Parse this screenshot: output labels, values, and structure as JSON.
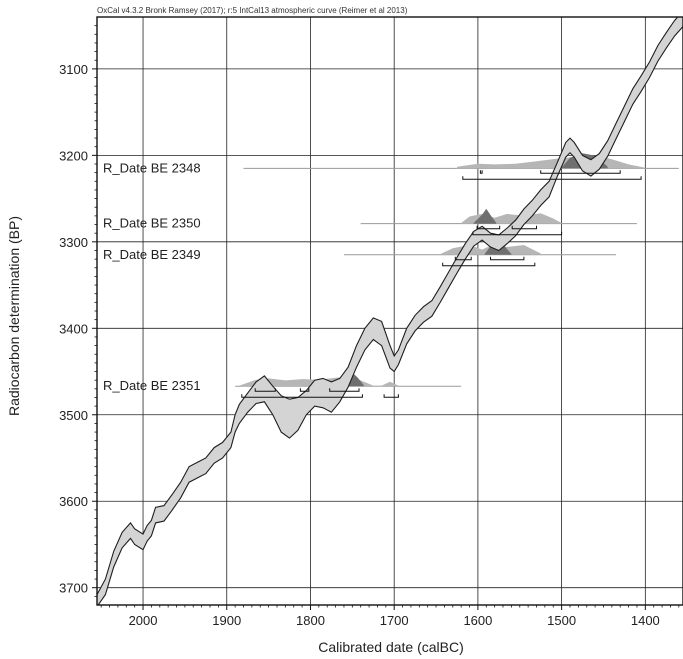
{
  "chart_data": {
    "type": "line",
    "title": "OxCal v4.3.2 Bronk Ramsey (2017); r:5 IntCal13 atmospheric curve (Reimer et al 2013)",
    "xlabel": "Calibrated date (calBC)",
    "ylabel": "Radiocarbon determination (BP)",
    "xlim": [
      2055,
      1355
    ],
    "ylim": [
      3040,
      3720
    ],
    "x_ticks": [
      2000,
      1900,
      1800,
      1700,
      1600,
      1500,
      1400
    ],
    "y_ticks": [
      3100,
      3200,
      3300,
      3400,
      3500,
      3600,
      3700
    ],
    "grid": true,
    "colors": {
      "curve_fill": "#d4d4d4",
      "curve_stroke": "#1e1e1e",
      "posterior": "#6f6f6f",
      "prior": "#b6b6b6",
      "grid": "#222222"
    },
    "series": [
      {
        "name": "IntCal13",
        "upper": [
          [
            2055,
            3708
          ],
          [
            2045,
            3690
          ],
          [
            2035,
            3658
          ],
          [
            2025,
            3636
          ],
          [
            2015,
            3625
          ],
          [
            2010,
            3632
          ],
          [
            2000,
            3638
          ],
          [
            1995,
            3628
          ],
          [
            1990,
            3622
          ],
          [
            1985,
            3607
          ],
          [
            1975,
            3605
          ],
          [
            1965,
            3592
          ],
          [
            1955,
            3578
          ],
          [
            1945,
            3560
          ],
          [
            1935,
            3555
          ],
          [
            1925,
            3550
          ],
          [
            1915,
            3538
          ],
          [
            1905,
            3532
          ],
          [
            1895,
            3520
          ],
          [
            1890,
            3500
          ],
          [
            1885,
            3488
          ],
          [
            1875,
            3475
          ],
          [
            1865,
            3462
          ],
          [
            1855,
            3455
          ],
          [
            1845,
            3467
          ],
          [
            1835,
            3478
          ],
          [
            1825,
            3482
          ],
          [
            1815,
            3480
          ],
          [
            1805,
            3472
          ],
          [
            1795,
            3460
          ],
          [
            1785,
            3458
          ],
          [
            1775,
            3462
          ],
          [
            1765,
            3458
          ],
          [
            1755,
            3445
          ],
          [
            1745,
            3420
          ],
          [
            1735,
            3400
          ],
          [
            1725,
            3388
          ],
          [
            1715,
            3392
          ],
          [
            1705,
            3420
          ],
          [
            1700,
            3432
          ],
          [
            1695,
            3425
          ],
          [
            1685,
            3400
          ],
          [
            1675,
            3385
          ],
          [
            1665,
            3375
          ],
          [
            1655,
            3368
          ],
          [
            1645,
            3352
          ],
          [
            1635,
            3335
          ],
          [
            1625,
            3318
          ],
          [
            1615,
            3302
          ],
          [
            1605,
            3288
          ],
          [
            1595,
            3282
          ],
          [
            1585,
            3290
          ],
          [
            1575,
            3292
          ],
          [
            1565,
            3284
          ],
          [
            1555,
            3275
          ],
          [
            1545,
            3262
          ],
          [
            1535,
            3252
          ],
          [
            1525,
            3240
          ],
          [
            1515,
            3230
          ],
          [
            1505,
            3208
          ],
          [
            1495,
            3185
          ],
          [
            1490,
            3180
          ],
          [
            1485,
            3185
          ],
          [
            1475,
            3200
          ],
          [
            1465,
            3205
          ],
          [
            1455,
            3198
          ],
          [
            1445,
            3183
          ],
          [
            1435,
            3163
          ],
          [
            1425,
            3143
          ],
          [
            1415,
            3123
          ],
          [
            1405,
            3108
          ],
          [
            1395,
            3092
          ],
          [
            1385,
            3073
          ],
          [
            1375,
            3058
          ],
          [
            1365,
            3044
          ],
          [
            1355,
            3033
          ]
        ],
        "lower": [
          [
            2055,
            3722
          ],
          [
            2045,
            3708
          ],
          [
            2035,
            3676
          ],
          [
            2025,
            3654
          ],
          [
            2015,
            3643
          ],
          [
            2010,
            3650
          ],
          [
            2000,
            3656
          ],
          [
            1995,
            3646
          ],
          [
            1990,
            3640
          ],
          [
            1985,
            3625
          ],
          [
            1975,
            3623
          ],
          [
            1965,
            3610
          ],
          [
            1955,
            3596
          ],
          [
            1945,
            3578
          ],
          [
            1935,
            3573
          ],
          [
            1925,
            3568
          ],
          [
            1915,
            3556
          ],
          [
            1905,
            3550
          ],
          [
            1895,
            3538
          ],
          [
            1890,
            3520
          ],
          [
            1885,
            3510
          ],
          [
            1875,
            3497
          ],
          [
            1865,
            3487
          ],
          [
            1855,
            3485
          ],
          [
            1845,
            3500
          ],
          [
            1835,
            3520
          ],
          [
            1825,
            3527
          ],
          [
            1815,
            3518
          ],
          [
            1805,
            3500
          ],
          [
            1795,
            3490
          ],
          [
            1785,
            3492
          ],
          [
            1775,
            3497
          ],
          [
            1765,
            3485
          ],
          [
            1755,
            3468
          ],
          [
            1745,
            3445
          ],
          [
            1735,
            3425
          ],
          [
            1725,
            3413
          ],
          [
            1715,
            3420
          ],
          [
            1705,
            3446
          ],
          [
            1700,
            3450
          ],
          [
            1695,
            3442
          ],
          [
            1685,
            3418
          ],
          [
            1675,
            3403
          ],
          [
            1665,
            3393
          ],
          [
            1655,
            3386
          ],
          [
            1645,
            3370
          ],
          [
            1635,
            3353
          ],
          [
            1625,
            3336
          ],
          [
            1615,
            3320
          ],
          [
            1605,
            3305
          ],
          [
            1595,
            3298
          ],
          [
            1585,
            3306
          ],
          [
            1575,
            3310
          ],
          [
            1565,
            3302
          ],
          [
            1555,
            3293
          ],
          [
            1545,
            3280
          ],
          [
            1535,
            3270
          ],
          [
            1525,
            3258
          ],
          [
            1515,
            3248
          ],
          [
            1505,
            3224
          ],
          [
            1495,
            3202
          ],
          [
            1490,
            3197
          ],
          [
            1485,
            3202
          ],
          [
            1475,
            3218
          ],
          [
            1465,
            3224
          ],
          [
            1455,
            3216
          ],
          [
            1445,
            3201
          ],
          [
            1435,
            3181
          ],
          [
            1425,
            3161
          ],
          [
            1415,
            3141
          ],
          [
            1405,
            3126
          ],
          [
            1395,
            3110
          ],
          [
            1385,
            3091
          ],
          [
            1375,
            3076
          ],
          [
            1365,
            3062
          ],
          [
            1355,
            3051
          ]
        ]
      }
    ],
    "dates": [
      {
        "label": "R_Date BE 2348",
        "y": 3215,
        "line_range": [
          1880,
          1360
        ],
        "prior": [
          [
            1625,
            0.12
          ],
          [
            1600,
            0.35
          ],
          [
            1580,
            0.3
          ],
          [
            1555,
            0.35
          ],
          [
            1530,
            0.55
          ],
          [
            1505,
            0.75
          ],
          [
            1480,
            0.9
          ],
          [
            1460,
            1.0
          ],
          [
            1440,
            0.7
          ],
          [
            1420,
            0.3
          ],
          [
            1400,
            0.05
          ]
        ],
        "posterior": [
          [
            1500,
            0.05
          ],
          [
            1490,
            0.7
          ],
          [
            1475,
            1.0
          ],
          [
            1460,
            0.85
          ],
          [
            1445,
            0.1
          ]
        ],
        "ranges": [
          [
            [
              1597,
              1595
            ],
            [
              1525,
              1430
            ]
          ],
          [
            [
              1618,
              1405
            ]
          ]
        ]
      },
      {
        "label": "R_Date BE 2350",
        "y": 3279,
        "line_range": [
          1740,
          1410
        ],
        "prior": [
          [
            1620,
            0.05
          ],
          [
            1610,
            0.55
          ],
          [
            1595,
            0.75
          ],
          [
            1580,
            0.45
          ],
          [
            1565,
            0.75
          ],
          [
            1545,
            0.6
          ],
          [
            1525,
            0.8
          ],
          [
            1510,
            0.4
          ],
          [
            1500,
            0.05
          ]
        ],
        "posterior": [
          [
            1605,
            0.05
          ],
          [
            1595,
            0.6
          ],
          [
            1590,
            1.0
          ],
          [
            1584,
            0.5
          ],
          [
            1578,
            0.05
          ]
        ],
        "ranges": [
          [
            [
              1601,
              1574
            ],
            [
              1559,
              1530
            ]
          ],
          [
            [
              1606,
              1500
            ]
          ]
        ]
      },
      {
        "label": "R_Date BE 2349",
        "y": 3315,
        "line_range": [
          1760,
          1435
        ],
        "prior": [
          [
            1645,
            0.05
          ],
          [
            1630,
            0.5
          ],
          [
            1610,
            0.75
          ],
          [
            1595,
            0.4
          ],
          [
            1580,
            0.85
          ],
          [
            1565,
            0.6
          ],
          [
            1545,
            0.75
          ],
          [
            1525,
            0.1
          ]
        ],
        "posterior": [
          [
            1592,
            0.05
          ],
          [
            1583,
            0.7
          ],
          [
            1575,
            1.0
          ],
          [
            1567,
            0.5
          ],
          [
            1560,
            0.05
          ]
        ],
        "ranges": [
          [
            [
              1627,
              1608
            ],
            [
              1585,
              1545
            ]
          ],
          [
            [
              1642,
              1532
            ]
          ]
        ]
      },
      {
        "label": "R_Date BE 2351",
        "y": 3467,
        "line_range": [
          1890,
          1620
        ],
        "prior": [
          [
            1885,
            0.05
          ],
          [
            1865,
            0.5
          ],
          [
            1850,
            0.6
          ],
          [
            1830,
            0.45
          ],
          [
            1810,
            0.55
          ],
          [
            1790,
            0.5
          ],
          [
            1770,
            0.65
          ],
          [
            1755,
            0.75
          ],
          [
            1740,
            0.45
          ],
          [
            1725,
            0.05
          ],
          [
            1715,
            0.05
          ],
          [
            1705,
            0.35
          ],
          [
            1695,
            0.05
          ]
        ],
        "posterior": [
          [
            1770,
            0.05
          ],
          [
            1760,
            0.8
          ],
          [
            1752,
            1.0
          ],
          [
            1744,
            0.6
          ],
          [
            1736,
            0.05
          ]
        ],
        "ranges": [
          [
            [
              1866,
              1842
            ],
            [
              1812,
              1802
            ],
            [
              1777,
              1742
            ]
          ],
          [
            [
              1882,
              1738
            ],
            [
              1712,
              1695
            ]
          ]
        ]
      }
    ]
  }
}
